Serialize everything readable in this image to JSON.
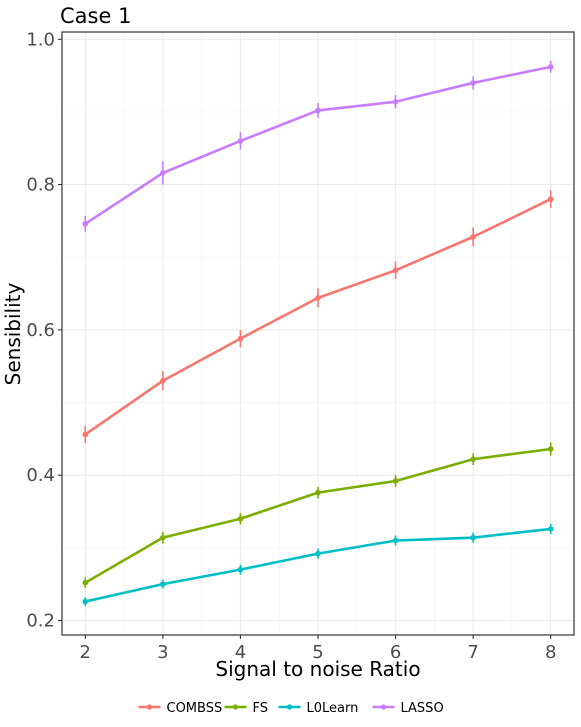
{
  "chart_data": {
    "type": "line",
    "title": "Case 1",
    "xlabel": "Signal to noise Ratio",
    "ylabel": "Sensibility",
    "x": [
      2,
      3,
      4,
      5,
      6,
      7,
      8
    ],
    "xlim": [
      1.7,
      8.3
    ],
    "ylim": [
      0.18,
      1.01
    ],
    "xticks": [
      2,
      3,
      4,
      5,
      6,
      7,
      8
    ],
    "yticks": [
      0.2,
      0.4,
      0.6,
      0.8,
      1.0
    ],
    "ytick_labels": [
      "0.2",
      "0.4",
      "0.6",
      "0.8",
      "1.0"
    ],
    "grid": true,
    "legend_position": "bottom",
    "series": [
      {
        "name": "COMBSS",
        "color": "#F8766D",
        "values": [
          0.456,
          0.53,
          0.588,
          0.644,
          0.682,
          0.728,
          0.78
        ],
        "error": [
          0.012,
          0.013,
          0.012,
          0.013,
          0.012,
          0.013,
          0.012
        ]
      },
      {
        "name": "FS",
        "color": "#7CAE00",
        "values": [
          0.252,
          0.314,
          0.34,
          0.376,
          0.392,
          0.422,
          0.436
        ],
        "error": [
          0.007,
          0.008,
          0.008,
          0.008,
          0.008,
          0.008,
          0.009
        ]
      },
      {
        "name": "L0Learn",
        "color": "#00BFC4",
        "values": [
          0.226,
          0.25,
          0.27,
          0.292,
          0.31,
          0.314,
          0.326
        ],
        "error": [
          0.006,
          0.006,
          0.007,
          0.007,
          0.007,
          0.007,
          0.007
        ]
      },
      {
        "name": "LASSO",
        "color": "#C77CFF",
        "values": [
          0.746,
          0.816,
          0.86,
          0.902,
          0.914,
          0.94,
          0.962
        ],
        "error": [
          0.011,
          0.016,
          0.012,
          0.01,
          0.009,
          0.009,
          0.008
        ]
      }
    ]
  }
}
